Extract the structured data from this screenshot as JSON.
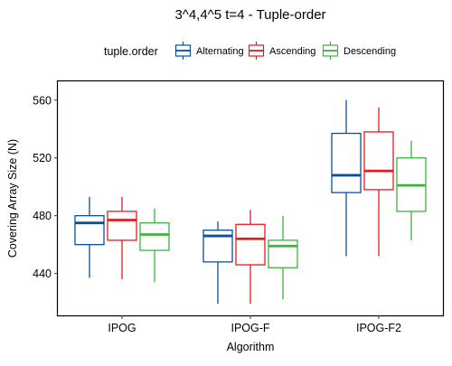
{
  "chart_data": {
    "type": "boxplot",
    "title": "3^4,4^5 t=4 - Tuple-order",
    "xlabel": "Algorithm",
    "ylabel": "Covering Array Size (N)",
    "ylim": [
      411,
      573
    ],
    "yticks": [
      440,
      480,
      520,
      560
    ],
    "categories": [
      "IPOG",
      "IPOG-F",
      "IPOG-F2"
    ],
    "legend": {
      "title": "tuple.order",
      "position": "top"
    },
    "grid": false,
    "series": [
      {
        "name": "Alternating",
        "color": "#0b4f9c",
        "boxes": [
          {
            "min": 437,
            "q1": 460,
            "median": 475,
            "q3": 480,
            "max": 493
          },
          {
            "min": 419,
            "q1": 448,
            "median": 466,
            "q3": 470,
            "max": 476
          },
          {
            "min": 452,
            "q1": 496,
            "median": 508,
            "q3": 537,
            "max": 560
          }
        ]
      },
      {
        "name": "Ascending",
        "color": "#e6191e",
        "boxes": [
          {
            "min": 436,
            "q1": 463,
            "median": 477,
            "q3": 483,
            "max": 493
          },
          {
            "min": 419,
            "q1": 446,
            "median": 464,
            "q3": 474,
            "max": 484
          },
          {
            "min": 452,
            "q1": 498,
            "median": 511,
            "q3": 538,
            "max": 555
          }
        ]
      },
      {
        "name": "Descending",
        "color": "#3cb43c",
        "boxes": [
          {
            "min": 434,
            "q1": 456,
            "median": 467,
            "q3": 475,
            "max": 485
          },
          {
            "min": 422,
            "q1": 444,
            "median": 459,
            "q3": 463,
            "max": 480
          },
          {
            "min": 463,
            "q1": 483,
            "median": 501,
            "q3": 520,
            "max": 532
          }
        ]
      }
    ]
  }
}
